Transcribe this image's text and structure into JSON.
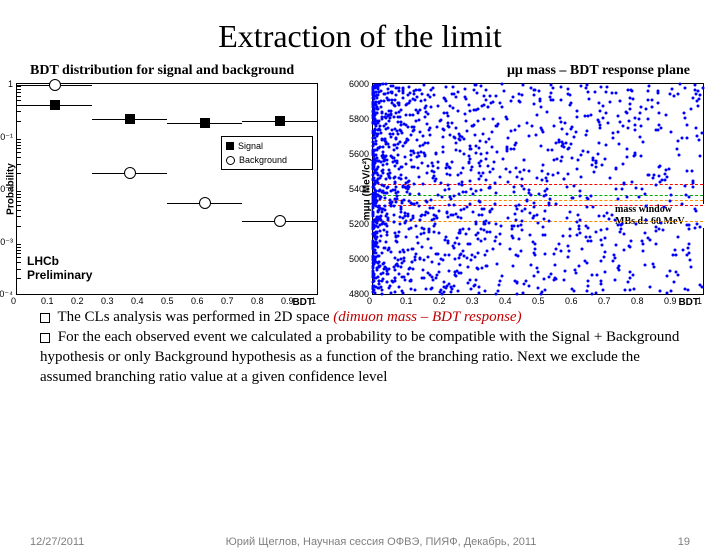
{
  "title": "Extraction of the limit",
  "subtitle_left": "BDT distribution for signal and background",
  "subtitle_right": "μμ mass – BDT response plane",
  "left_chart": {
    "type": "scatter-errorbar-logy",
    "xlabel": "BDT",
    "ylabel": "Probability",
    "xlim": [
      0,
      1
    ],
    "xtick_step": 0.1,
    "xticks": [
      "0",
      "0.1",
      "0.2",
      "0.3",
      "0.4",
      "0.5",
      "0.6",
      "0.7",
      "0.8",
      "0.9",
      "1"
    ],
    "ylim_exp": [
      -4,
      0
    ],
    "yticks": [
      "1",
      "10⁻¹",
      "10⁻²",
      "10⁻³",
      "10⁻⁴"
    ],
    "series": [
      {
        "name": "Signal",
        "marker": "square",
        "color": "#000000",
        "points": [
          {
            "x": 0.125,
            "y": 0.4,
            "x_err": 0.125
          },
          {
            "x": 0.375,
            "y": 0.22,
            "x_err": 0.125
          },
          {
            "x": 0.625,
            "y": 0.18,
            "x_err": 0.125
          },
          {
            "x": 0.875,
            "y": 0.2,
            "x_err": 0.125
          }
        ]
      },
      {
        "name": "Background",
        "marker": "circle",
        "color": "#000000",
        "points": [
          {
            "x": 0.125,
            "y": 0.97,
            "x_err": 0.125
          },
          {
            "x": 0.375,
            "y": 0.02,
            "x_err": 0.125
          },
          {
            "x": 0.625,
            "y": 0.0055,
            "x_err": 0.125
          },
          {
            "x": 0.875,
            "y": 0.0025,
            "x_err": 0.125
          }
        ]
      }
    ],
    "legend": {
      "items": [
        "Signal",
        "Background"
      ],
      "position": "right"
    },
    "preliminary": [
      "LHCb",
      "Preliminary"
    ]
  },
  "right_chart": {
    "type": "scatter-2d",
    "xlabel": "BDT",
    "ylabel": "mμμ (MeV/c²)",
    "xlim": [
      0,
      1
    ],
    "xtick_step": 0.1,
    "xticks": [
      "0",
      "0.1",
      "0.2",
      "0.3",
      "0.4",
      "0.5",
      "0.6",
      "0.7",
      "0.8",
      "0.9",
      "1"
    ],
    "ylim": [
      4800,
      6000
    ],
    "ytick_step": 200,
    "yticks": [
      "4800",
      "5000",
      "5200",
      "5400",
      "5600",
      "5800",
      "6000"
    ],
    "dot_color": "#0000ff",
    "hlines": [
      {
        "y": 5307,
        "color": "#ff0000"
      },
      {
        "y": 5367,
        "color": "#00aa00"
      },
      {
        "y": 5427,
        "color": "#ff0000"
      },
      {
        "y": 5220,
        "color": "#ff8800"
      },
      {
        "y": 5340,
        "color": "#ff8800"
      }
    ],
    "annotation": "mass window\nMBs,d± 60 MeV"
  },
  "body": {
    "line1": "The CLs analysis was performed in 2D space",
    "dimuon": "(dimuon mass – BDT response)",
    "line2": "For the each observed event we calculated a probability to be compatible with the Signal + Background hypothesis or only Background hypothesis as a function of the branching ratio. Next we exclude the assumed branching ratio value at a given confidence level"
  },
  "footer": {
    "date": "12/27/2011",
    "center": "Юрий Щеглов, Научная сессия ОФВЭ, ПИЯФ, Декабрь, 2011",
    "page": "19"
  }
}
